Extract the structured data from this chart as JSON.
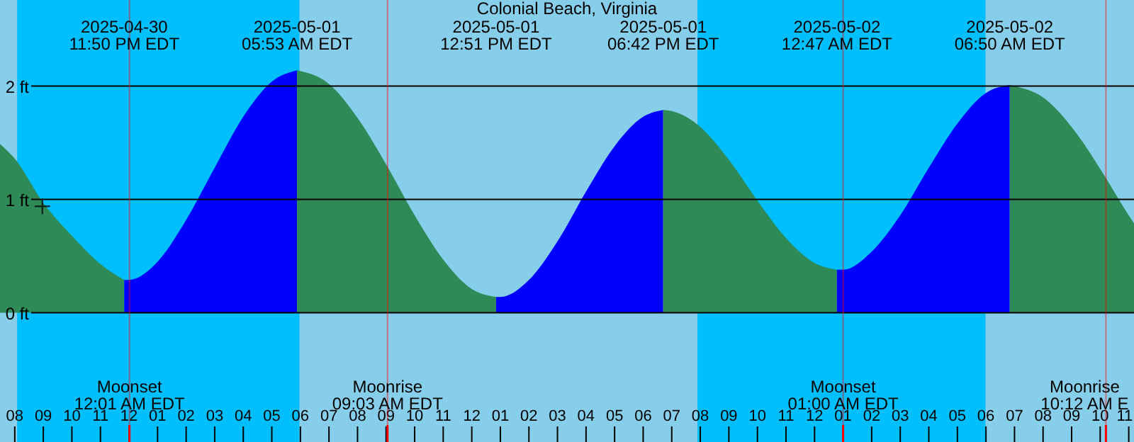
{
  "chart_data": {
    "type": "area",
    "title": "Colonial Beach, Virginia",
    "xlim": [
      "2025-04-30T19:29",
      "2025-05-02T11:11"
    ],
    "ylim": [
      -1.14,
      2.76
    ],
    "yticks": [
      {
        "value": 0,
        "label": "0 ft"
      },
      {
        "value": 1,
        "label": "1 ft"
      },
      {
        "value": 2,
        "label": "2 ft"
      }
    ],
    "xticks": [
      {
        "value": "2025-04-30T20:00",
        "label": "08"
      },
      {
        "value": "2025-04-30T21:00",
        "label": "09"
      },
      {
        "value": "2025-04-30T22:00",
        "label": "10"
      },
      {
        "value": "2025-04-30T23:00",
        "label": "11"
      },
      {
        "value": "2025-05-01T00:00",
        "label": "12"
      },
      {
        "value": "2025-05-01T01:00",
        "label": "01"
      },
      {
        "value": "2025-05-01T02:00",
        "label": "02"
      },
      {
        "value": "2025-05-01T03:00",
        "label": "03"
      },
      {
        "value": "2025-05-01T04:00",
        "label": "04"
      },
      {
        "value": "2025-05-01T05:00",
        "label": "05"
      },
      {
        "value": "2025-05-01T06:00",
        "label": "06"
      },
      {
        "value": "2025-05-01T07:00",
        "label": "07"
      },
      {
        "value": "2025-05-01T08:00",
        "label": "08"
      },
      {
        "value": "2025-05-01T09:00",
        "label": "09"
      },
      {
        "value": "2025-05-01T10:00",
        "label": "10"
      },
      {
        "value": "2025-05-01T11:00",
        "label": "11"
      },
      {
        "value": "2025-05-01T12:00",
        "label": "12"
      },
      {
        "value": "2025-05-01T13:00",
        "label": "01"
      },
      {
        "value": "2025-05-01T14:00",
        "label": "02"
      },
      {
        "value": "2025-05-01T15:00",
        "label": "03"
      },
      {
        "value": "2025-05-01T16:00",
        "label": "04"
      },
      {
        "value": "2025-05-01T17:00",
        "label": "05"
      },
      {
        "value": "2025-05-01T18:00",
        "label": "06"
      },
      {
        "value": "2025-05-01T19:00",
        "label": "07"
      },
      {
        "value": "2025-05-01T20:00",
        "label": "08"
      },
      {
        "value": "2025-05-01T21:00",
        "label": "09"
      },
      {
        "value": "2025-05-01T22:00",
        "label": "10"
      },
      {
        "value": "2025-05-01T23:00",
        "label": "11"
      },
      {
        "value": "2025-05-02T00:00",
        "label": "12"
      },
      {
        "value": "2025-05-02T01:00",
        "label": "01"
      },
      {
        "value": "2025-05-02T02:00",
        "label": "02"
      },
      {
        "value": "2025-05-02T03:00",
        "label": "03"
      },
      {
        "value": "2025-05-02T04:00",
        "label": "04"
      },
      {
        "value": "2025-05-02T05:00",
        "label": "05"
      },
      {
        "value": "2025-05-02T06:00",
        "label": "06"
      },
      {
        "value": "2025-05-02T07:00",
        "label": "07"
      },
      {
        "value": "2025-05-02T08:00",
        "label": "08"
      },
      {
        "value": "2025-05-02T09:00",
        "label": "09"
      },
      {
        "value": "2025-05-02T10:00",
        "label": "10"
      },
      {
        "value": "2025-05-02T11:00",
        "label": "11"
      }
    ],
    "grid": "y",
    "bands": [
      {
        "axis": "x",
        "from": "2025-04-30T20:05",
        "to": "2025-05-01T05:58",
        "color": "#00bfff"
      },
      {
        "axis": "x",
        "from": "2025-05-01T19:54",
        "to": "2025-05-02T05:59",
        "color": "#00bfff"
      }
    ],
    "series": [
      {
        "color": "#2e8b57",
        "x": [
          "2025-04-30T19:29",
          "2025-04-30T20:00",
          "2025-04-30T21:00",
          "2025-04-30T22:00",
          "2025-04-30T23:00",
          "2025-04-30T23:50"
        ],
        "values": [
          1.49,
          1.36,
          0.97,
          0.68,
          0.43,
          0.29
        ]
      },
      {
        "color": "#0000ff",
        "x": [
          "2025-04-30T23:50",
          "2025-05-01T00:00",
          "2025-05-01T01:00",
          "2025-05-01T02:00",
          "2025-05-01T03:00",
          "2025-05-01T04:00",
          "2025-05-01T05:00",
          "2025-05-01T05:53"
        ],
        "values": [
          0.29,
          0.29,
          0.45,
          0.82,
          1.28,
          1.73,
          2.04,
          2.14
        ]
      },
      {
        "color": "#2e8b57",
        "x": [
          "2025-05-01T05:53",
          "2025-05-01T07:00",
          "2025-05-01T08:00",
          "2025-05-01T09:00",
          "2025-05-01T10:00",
          "2025-05-01T11:00",
          "2025-05-01T12:00",
          "2025-05-01T12:51"
        ],
        "values": [
          2.14,
          2.02,
          1.72,
          1.31,
          0.86,
          0.47,
          0.21,
          0.14
        ]
      },
      {
        "color": "#0000ff",
        "x": [
          "2025-05-01T12:51",
          "2025-05-01T13:00",
          "2025-05-01T14:00",
          "2025-05-01T15:00",
          "2025-05-01T16:00",
          "2025-05-01T17:00",
          "2025-05-01T18:00",
          "2025-05-01T18:42"
        ],
        "values": [
          0.14,
          0.14,
          0.29,
          0.63,
          1.07,
          1.47,
          1.73,
          1.79
        ]
      },
      {
        "color": "#2e8b57",
        "x": [
          "2025-05-01T18:42",
          "2025-05-01T19:00",
          "2025-05-01T20:00",
          "2025-05-01T21:00",
          "2025-05-01T22:00",
          "2025-05-01T23:00",
          "2025-05-02T00:00",
          "2025-05-02T00:47"
        ],
        "values": [
          1.79,
          1.78,
          1.64,
          1.35,
          0.99,
          0.66,
          0.44,
          0.38
        ]
      },
      {
        "color": "#0000ff",
        "x": [
          "2025-05-02T00:47",
          "2025-05-02T01:00",
          "2025-05-02T02:00",
          "2025-05-02T03:00",
          "2025-05-02T04:00",
          "2025-05-02T05:00",
          "2025-05-02T06:00",
          "2025-05-02T06:50"
        ],
        "values": [
          0.38,
          0.38,
          0.54,
          0.86,
          1.28,
          1.67,
          1.94,
          2.01
        ]
      },
      {
        "color": "#2e8b57",
        "x": [
          "2025-05-02T06:50",
          "2025-05-02T07:00",
          "2025-05-02T08:00",
          "2025-05-02T09:00",
          "2025-05-02T10:00",
          "2025-05-02T11:00",
          "2025-05-02T11:11"
        ],
        "values": [
          2.01,
          2.0,
          1.9,
          1.64,
          1.27,
          0.86,
          0.79
        ]
      },
      {
        "type": "scatter",
        "marker": "cross",
        "color": "#000000",
        "x": [
          "2025-04-30T20:58"
        ],
        "values": [
          0.94
        ]
      }
    ],
    "annotations": [
      "2025-04-30\n11:50 PM EDT",
      "2025-05-01\n05:53 AM EDT",
      "2025-05-01\n12:51 PM EDT",
      "2025-05-01\n06:42 PM EDT",
      "2025-05-02\n12:47 AM EDT",
      "2025-05-02\n06:50 AM EDT"
    ],
    "ref_lines": [
      {
        "axis": "x",
        "value": "2025-05-01T00:01",
        "label": "Moonset\n12:01 AM EDT",
        "color": "#ff0000"
      },
      {
        "axis": "x",
        "value": "2025-05-01T09:03",
        "label": "Moonrise\n09:03 AM EDT",
        "color": "#ff0000"
      },
      {
        "axis": "x",
        "value": "2025-05-02T01:00",
        "label": "Moonset\n01:00 AM EDT",
        "color": "#ff0000"
      },
      {
        "axis": "x",
        "value": "2025-05-02T10:12",
        "label": "Moonrise\n10:12 AM E",
        "color": "#ff0000"
      }
    ]
  }
}
